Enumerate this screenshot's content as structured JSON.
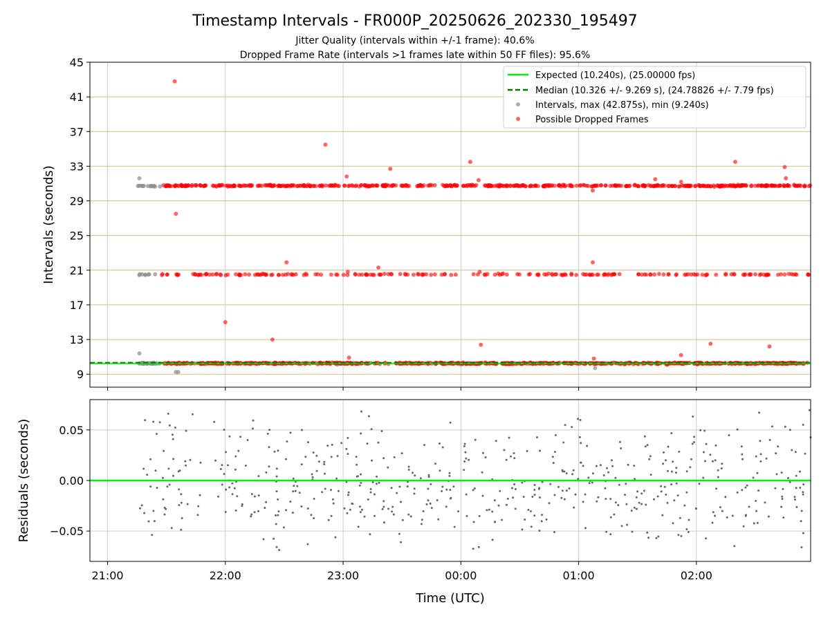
{
  "figure": {
    "title": "Timestamp Intervals - FR000P_20250626_202330_195497",
    "subtitle1": "Jitter Quality (intervals within +/-1 frame): 40.6%",
    "subtitle2": "Dropped Frame Rate (intervals >1 frames late within 50 FF files): 95.6%"
  },
  "colors": {
    "expected": "#00ee00",
    "median": "#007700",
    "intervals": "#8c8c8c",
    "dropped": "#ff0000",
    "hgrid_top": "#d4bf80",
    "grid": "#cccccc",
    "residual": "#666666"
  },
  "chart_data": [
    {
      "type": "scatter",
      "xlabel": "",
      "ylabel": "Intervals (seconds)",
      "xlim": [
        -0.15,
        5.97
      ],
      "ylim": [
        7.5,
        45
      ],
      "yticks": [
        "9",
        "13",
        "17",
        "21",
        "25",
        "29",
        "33",
        "37",
        "41",
        "45"
      ],
      "xtick_labels": [
        "21:00",
        "22:00",
        "23:00",
        "00:00",
        "01:00",
        "02:00"
      ],
      "legend_position": "upper-right",
      "legend": [
        "Expected (10.240s), (25.00000 fps)",
        "Median (10.326 +/- 9.269 s), (24.78826 +/- 7.79 fps)",
        "Intervals, max (42.875s), min (9.240s)",
        "Possible Dropped Frames"
      ],
      "series": [
        {
          "name": "Expected (10.240s), (25.00000 fps)",
          "kind": "hline",
          "y": 10.24
        },
        {
          "name": "Median (10.326 +/- 9.269 s), (24.78826 +/- 7.79 fps)",
          "kind": "hline-dashed",
          "y": 10.326
        },
        {
          "name": "Intervals, max (42.875s), min (9.240s)",
          "kind": "scatter",
          "bands": [
            {
              "y": 10.24,
              "x_range": [
                0.25,
                0.45
              ],
              "count": 35,
              "jitter": 0.05
            },
            {
              "y": 20.5,
              "x_range": [
                0.25,
                0.45
              ],
              "count": 8,
              "jitter": 0.05
            },
            {
              "y": 30.7,
              "x_range": [
                0.25,
                0.45
              ],
              "count": 14,
              "jitter": 0.05
            },
            {
              "y": 10.24,
              "x_range": [
                0.45,
                5.97
              ],
              "count": 60,
              "jitter": 0.05
            }
          ],
          "points": [
            [
              0.27,
              31.6
            ],
            [
              0.27,
              11.4
            ],
            [
              0.58,
              9.25
            ],
            [
              0.6,
              9.25
            ],
            [
              1.1,
              10.22
            ],
            [
              1.95,
              10.1
            ],
            [
              3.0,
              10.1
            ],
            [
              4.14,
              9.7
            ],
            [
              5.01,
              10.1
            ],
            [
              4.75,
              10.05
            ]
          ]
        },
        {
          "name": "Possible Dropped Frames",
          "kind": "scatter",
          "bands": [
            {
              "y": 10.25,
              "x_range": [
                0.47,
                5.97
              ],
              "count": 700,
              "jitter": 0.06
            },
            {
              "y": 20.5,
              "x_range": [
                0.45,
                5.97
              ],
              "count": 210,
              "jitter": 0.06
            },
            {
              "y": 30.75,
              "x_range": [
                0.47,
                5.97
              ],
              "count": 520,
              "jitter": 0.07
            }
          ],
          "points": [
            [
              0.57,
              42.8
            ],
            [
              0.58,
              27.5
            ],
            [
              1.0,
              15.0
            ],
            [
              1.4,
              13.0
            ],
            [
              1.52,
              21.9
            ],
            [
              1.85,
              35.5
            ],
            [
              2.03,
              31.8
            ],
            [
              2.04,
              20.8
            ],
            [
              2.05,
              10.9
            ],
            [
              2.3,
              21.3
            ],
            [
              2.4,
              32.7
            ],
            [
              3.08,
              33.5
            ],
            [
              3.15,
              31.4
            ],
            [
              3.16,
              20.8
            ],
            [
              3.17,
              12.4
            ],
            [
              4.12,
              30.2
            ],
            [
              4.12,
              21.9
            ],
            [
              4.13,
              10.8
            ],
            [
              4.65,
              31.5
            ],
            [
              4.87,
              31.2
            ],
            [
              4.87,
              11.2
            ],
            [
              5.12,
              12.5
            ],
            [
              5.33,
              33.5
            ],
            [
              5.62,
              12.2
            ],
            [
              5.75,
              32.9
            ],
            [
              5.76,
              31.6
            ],
            [
              5.95,
              20.5
            ]
          ]
        }
      ]
    },
    {
      "type": "scatter",
      "xlabel": "Time (UTC)",
      "ylabel": "Residuals (seconds)",
      "xlim": [
        -0.15,
        5.97
      ],
      "ylim": [
        -0.08,
        0.08
      ],
      "yticks": [
        "−0.05",
        "0.00",
        "0.05"
      ],
      "xtick_labels": [
        "21:00",
        "22:00",
        "23:00",
        "00:00",
        "01:00",
        "02:00"
      ],
      "series": [
        {
          "name": "",
          "kind": "hline",
          "y": 0
        },
        {
          "name": "",
          "kind": "scatter",
          "x_range": [
            0.25,
            5.97
          ],
          "count": 560,
          "spread": 0.075
        }
      ]
    }
  ]
}
